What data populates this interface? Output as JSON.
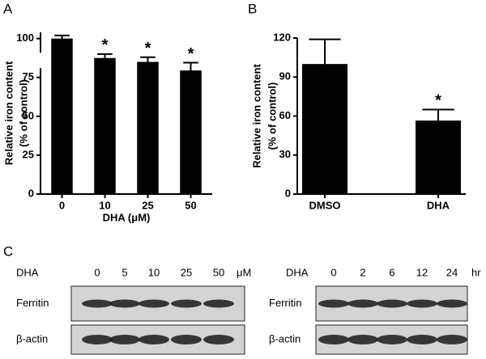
{
  "chart_data": [
    {
      "type": "bar",
      "panel": "A",
      "ylabel": [
        "Relative iron content",
        "(% of control)"
      ],
      "xlabel": "DHA (μM)",
      "categories": [
        "0",
        "10",
        "25",
        "50"
      ],
      "values": [
        100,
        87.5,
        85,
        79.5
      ],
      "errors": [
        2,
        2.5,
        3,
        5
      ],
      "significance": [
        null,
        "*",
        "*",
        "*"
      ],
      "color": "#000000",
      "ylim": [
        0,
        104
      ],
      "yticks": [
        0,
        25,
        50,
        75,
        100
      ],
      "axis_break": [
        81,
        91
      ]
    },
    {
      "type": "bar",
      "panel": "B",
      "ylabel": [
        "Relative iron content",
        "(% of control)"
      ],
      "categories": [
        "DMSO",
        "DHA"
      ],
      "values": [
        100,
        56.5
      ],
      "errors": [
        19,
        8.5
      ],
      "significance": [
        null,
        "*"
      ],
      "color": "#000000",
      "ylim": [
        0,
        120
      ],
      "yticks": [
        0,
        30,
        60,
        90,
        120
      ]
    }
  ],
  "blots": {
    "panel": "C",
    "panels": [
      {
        "treatment": "DHA",
        "unit": "μM",
        "lanes": [
          "0",
          "5",
          "10",
          "25",
          "50"
        ],
        "rows": [
          "Ferritin",
          "β-actin"
        ]
      },
      {
        "treatment": "DHA",
        "unit": "hr",
        "lanes": [
          "0",
          "2",
          "6",
          "12",
          "24"
        ],
        "rows": [
          "Ferritin",
          "β-actin"
        ]
      }
    ]
  }
}
